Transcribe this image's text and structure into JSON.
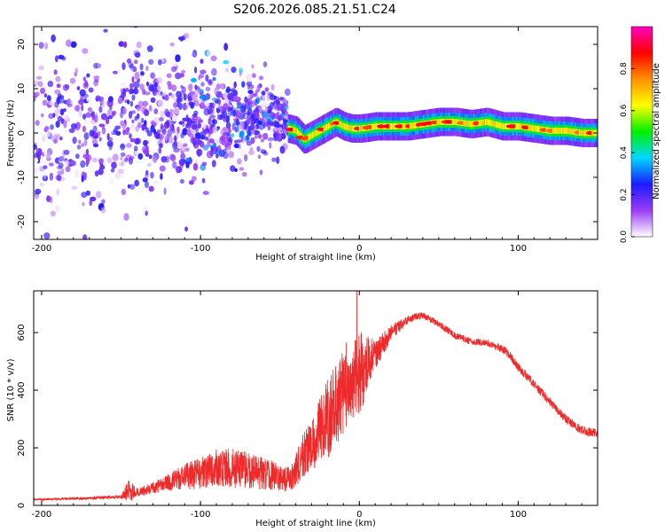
{
  "title": "S206.2026.085.21.51.C24",
  "colors": {
    "signal": "#ee2a2a",
    "axis": "#000000",
    "background": "#ffffff"
  },
  "chart_data": [
    {
      "type": "heatmap",
      "title": "S206.2026.085.21.51.C24",
      "xlabel": "Height of straight line (km)",
      "ylabel": "Frequency (Hz)",
      "xlim": [
        -205,
        150
      ],
      "ylim": [
        -24,
        24
      ],
      "xticks": [
        -200,
        -100,
        0,
        100
      ],
      "xtick_labels": [
        "-200",
        "-100",
        "0",
        "100"
      ],
      "yticks": [
        -20,
        -10,
        0,
        10,
        20
      ],
      "ytick_labels": [
        "-20",
        "-10",
        "0",
        "10",
        "20"
      ],
      "colorbar": {
        "label": "Normalized spectral amplitude",
        "range": [
          0,
          1
        ],
        "ticks": [
          0.0,
          0.2,
          0.4,
          0.6,
          0.8
        ],
        "tick_labels": [
          "0.0",
          "0.2",
          "0.4",
          "0.6",
          "0.8"
        ],
        "stops": [
          "#ffffff",
          "#9b3cf5",
          "#1a1aff",
          "#00d8ff",
          "#00f000",
          "#ffff00",
          "#ff9000",
          "#ff0000",
          "#ff00c0"
        ]
      },
      "ridge": {
        "x": [
          -45,
          -40,
          -35,
          -30,
          -25,
          -20,
          -15,
          -10,
          -5,
          0,
          5,
          10,
          20,
          30,
          40,
          50,
          60,
          70,
          80,
          90,
          100,
          110,
          120,
          130,
          140,
          150
        ],
        "freq": [
          1.0,
          0.5,
          -1.5,
          -0.5,
          0.5,
          1.5,
          2.5,
          1.5,
          1.0,
          1.0,
          1.2,
          1.5,
          1.5,
          1.5,
          2.0,
          2.5,
          2.5,
          2.0,
          2.5,
          1.5,
          1.5,
          1.0,
          0.5,
          0.5,
          0.0,
          0.0
        ]
      },
      "scatter_region": {
        "x_range": [
          -205,
          -45
        ],
        "freq_range": [
          -24,
          24
        ]
      }
    },
    {
      "type": "line",
      "xlabel": "Height of straight line (km)",
      "ylabel": "SNR (10 * v/v)",
      "xlim": [
        -205,
        150
      ],
      "ylim": [
        0,
        745
      ],
      "xticks": [
        -200,
        -100,
        0,
        100
      ],
      "xtick_labels": [
        "-200",
        "-100",
        "0",
        "100"
      ],
      "yticks": [
        0,
        200,
        400,
        600
      ],
      "ytick_labels": [
        "0",
        "200",
        "400",
        "600"
      ],
      "series": [
        {
          "name": "SNR",
          "x": [
            -205,
            -190,
            -170,
            -150,
            -145,
            -140,
            -130,
            -120,
            -110,
            -100,
            -90,
            -80,
            -70,
            -60,
            -50,
            -45,
            -40,
            -35,
            -30,
            -25,
            -20,
            -15,
            -10,
            -5,
            0,
            5,
            10,
            15,
            20,
            25,
            30,
            35,
            40,
            50,
            60,
            70,
            80,
            90,
            95,
            100,
            110,
            120,
            130,
            140,
            150
          ],
          "y": [
            20,
            22,
            25,
            30,
            50,
            45,
            60,
            80,
            100,
            110,
            130,
            130,
            120,
            110,
            100,
            90,
            120,
            180,
            200,
            260,
            300,
            350,
            400,
            450,
            450,
            500,
            530,
            560,
            600,
            620,
            640,
            655,
            660,
            630,
            590,
            570,
            565,
            545,
            520,
            480,
            420,
            360,
            300,
            260,
            250
          ],
          "noise": [
            3,
            4,
            5,
            6,
            40,
            15,
            20,
            30,
            45,
            55,
            65,
            70,
            65,
            55,
            50,
            45,
            60,
            80,
            95,
            110,
            140,
            140,
            160,
            140,
            160,
            90,
            60,
            40,
            30,
            20,
            15,
            12,
            12,
            12,
            12,
            12,
            12,
            15,
            15,
            15,
            15,
            15,
            15,
            15,
            15
          ]
        }
      ]
    }
  ]
}
